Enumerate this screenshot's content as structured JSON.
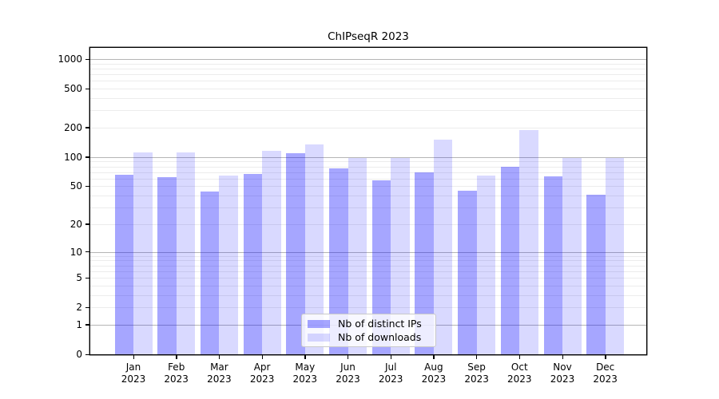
{
  "chart_data": {
    "type": "bar",
    "title": "ChIPseqR 2023",
    "xlabel": "",
    "ylabel": "",
    "scale": "log1p",
    "grid": true,
    "legend_position": "lower center",
    "categories": [
      "Jan 2023",
      "Feb 2023",
      "Mar 2023",
      "Apr 2023",
      "May 2023",
      "Jun 2023",
      "Jul 2023",
      "Aug 2023",
      "Sep 2023",
      "Oct 2023",
      "Nov 2023",
      "Dec 2023"
    ],
    "series": [
      {
        "name": "Nb of distinct IPs",
        "color": "rgba(0,0,255,0.35)",
        "values": [
          66,
          62,
          44,
          67,
          109,
          76,
          58,
          69,
          45,
          80,
          63,
          41
        ]
      },
      {
        "name": "Nb of downloads",
        "color": "rgba(0,0,255,0.15)",
        "values": [
          112,
          112,
          65,
          115,
          136,
          98,
          98,
          151,
          64,
          188,
          97,
          98
        ]
      }
    ],
    "yticks": [
      0,
      1,
      2,
      5,
      10,
      20,
      50,
      100,
      200,
      500,
      1000
    ],
    "ylim": [
      0,
      1283
    ]
  },
  "colors": {
    "background": "#ffffff",
    "text": "#000000",
    "axis": "#000000",
    "major_grid": "#b5b5b5",
    "minor_grid": "#ececec",
    "legend_border": "#c9c9c9",
    "legend_bg": "rgba(255,255,255,0.8)"
  }
}
